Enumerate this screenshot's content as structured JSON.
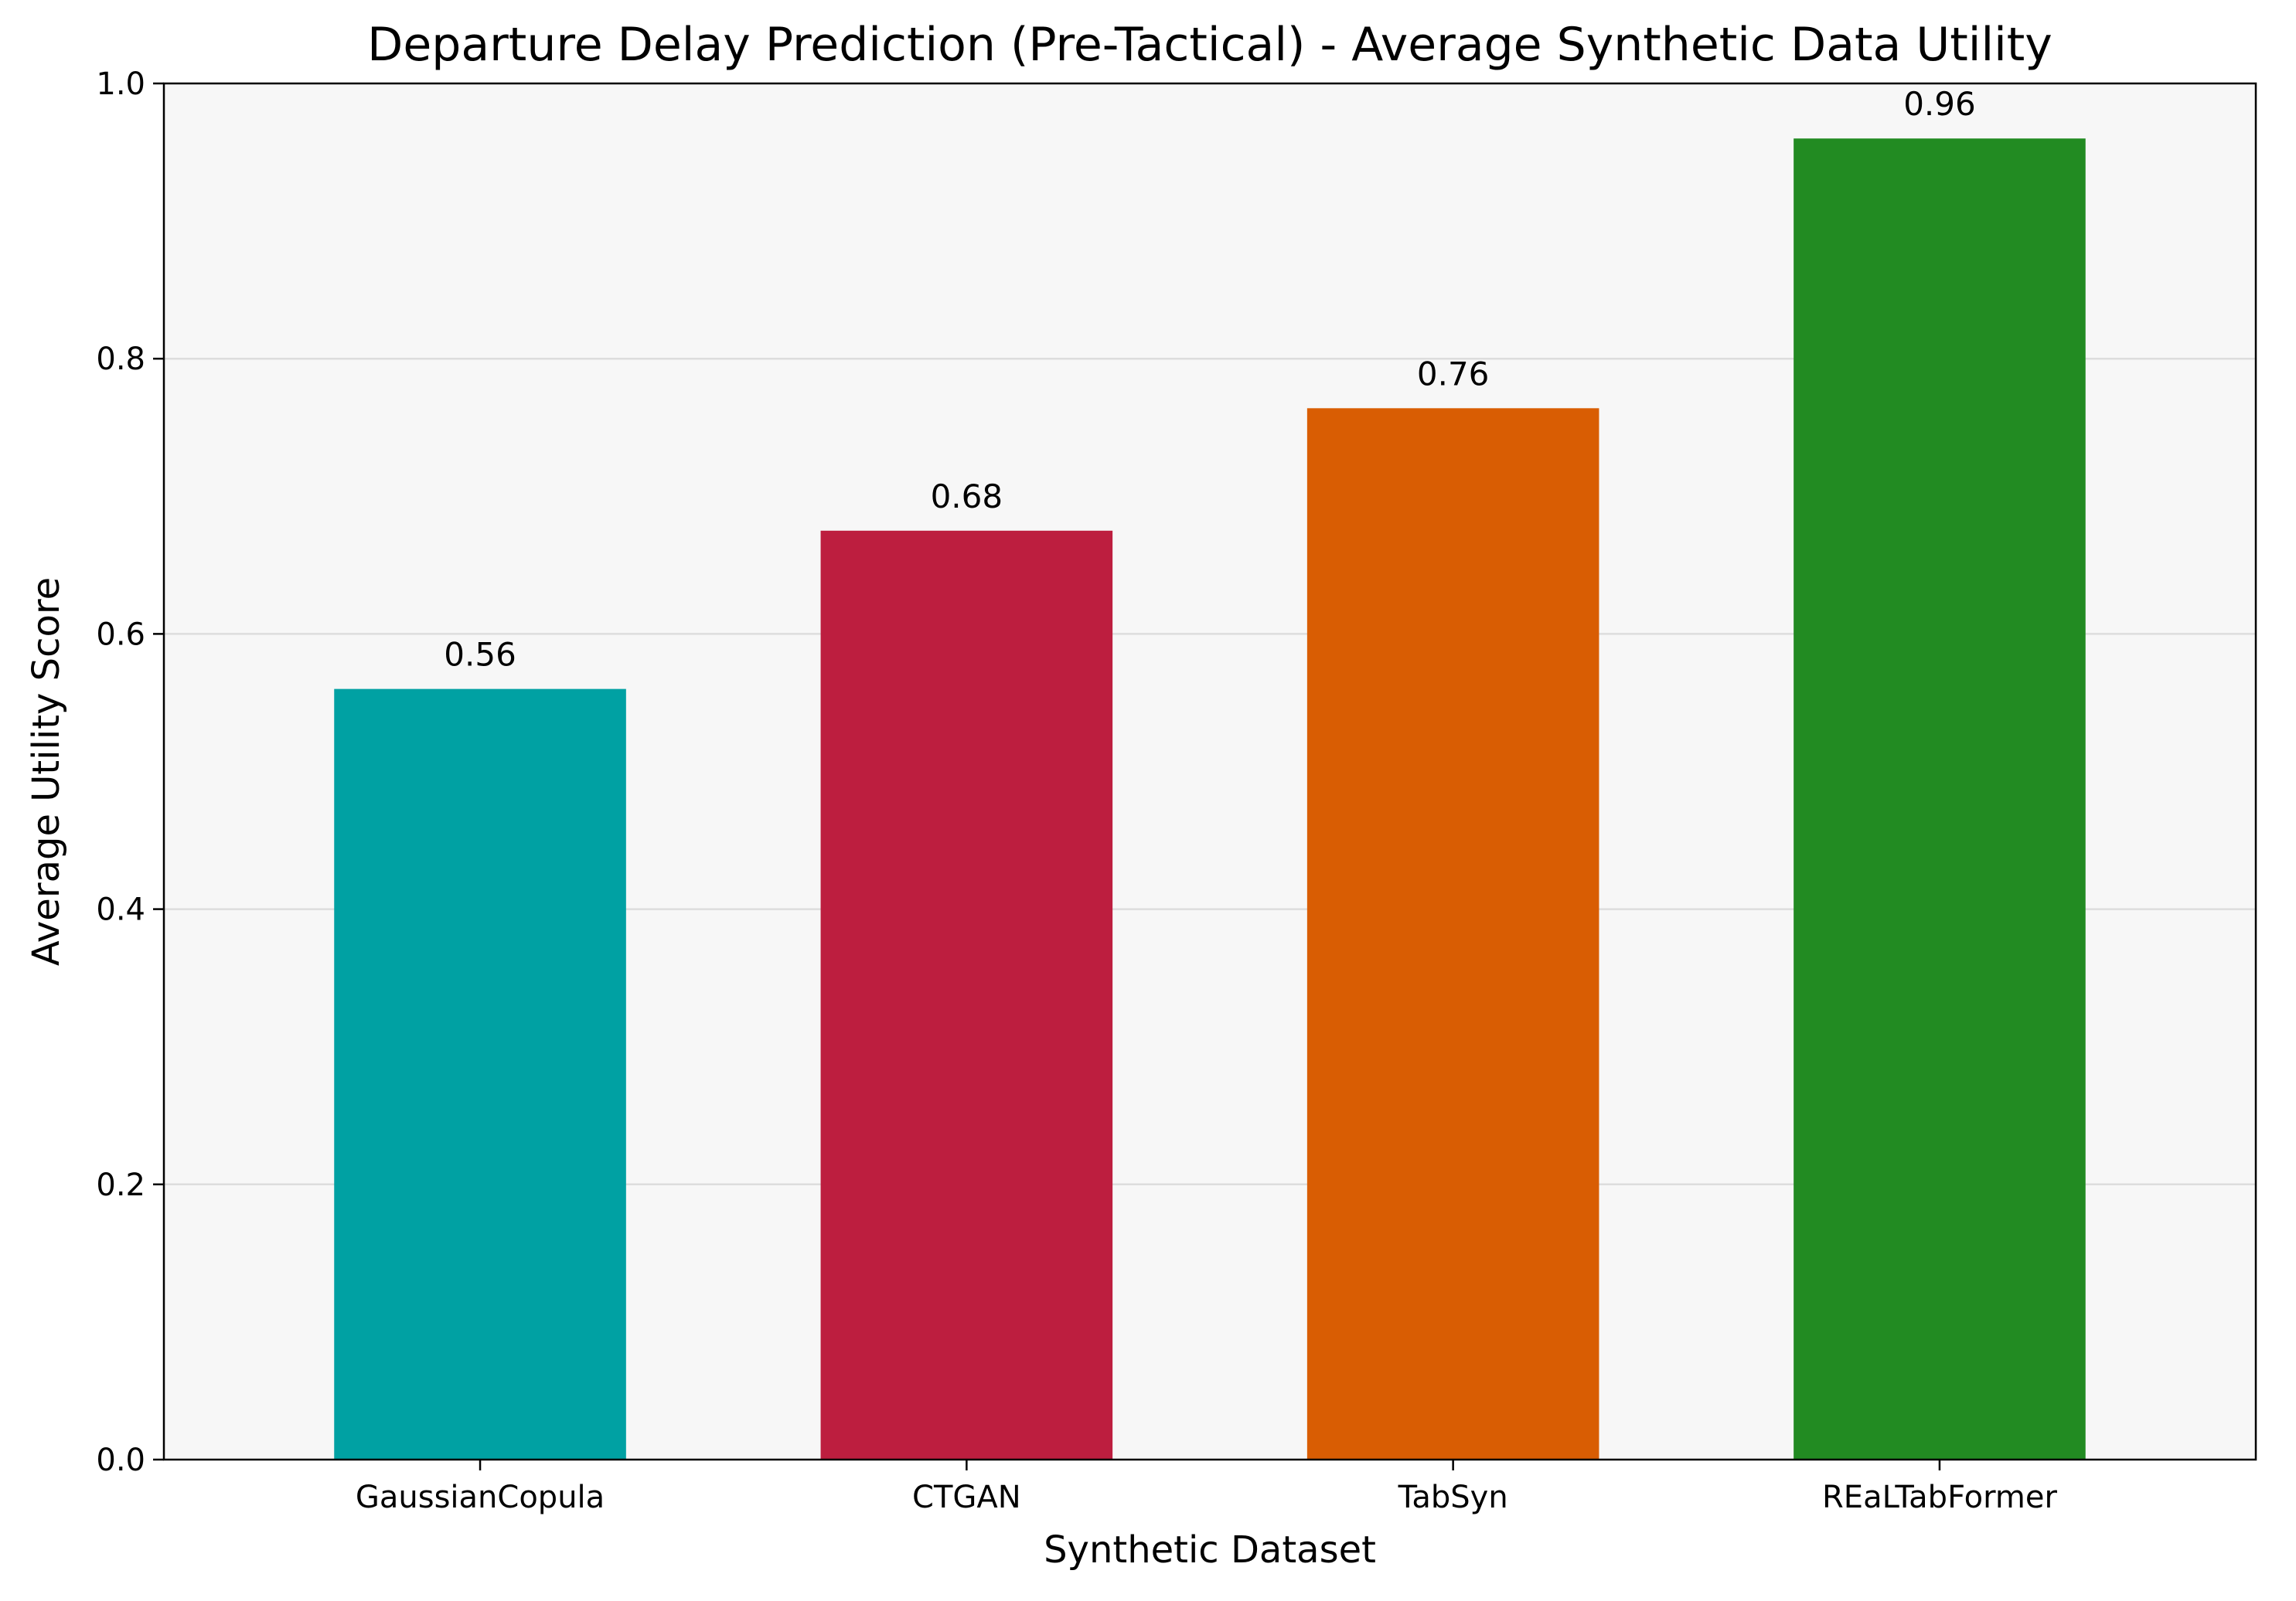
{
  "chart_data": {
    "type": "bar",
    "title": "Departure Delay Prediction (Pre-Tactical) - Average Synthetic Data Utility",
    "xlabel": "Synthetic Dataset",
    "ylabel": "Average Utility Score",
    "categories": [
      "GaussianCopula",
      "CTGAN",
      "TabSyn",
      "REaLTabFormer"
    ],
    "values": [
      0.56,
      0.675,
      0.764,
      0.96
    ],
    "value_labels": [
      "0.56",
      "0.68",
      "0.76",
      "0.96"
    ],
    "colors": [
      "#00a1a3",
      "#bd1e3f",
      "#d95d03",
      "#228b22"
    ],
    "ylim": [
      0,
      1.0
    ],
    "yticks": [
      0.0,
      0.2,
      0.4,
      0.6,
      0.8,
      1.0
    ],
    "ytick_labels": [
      "0.0",
      "0.2",
      "0.4",
      "0.6",
      "0.8",
      "1.0"
    ],
    "grid": true,
    "grid_axis": "y",
    "plot_background": "#f7f7f7"
  }
}
